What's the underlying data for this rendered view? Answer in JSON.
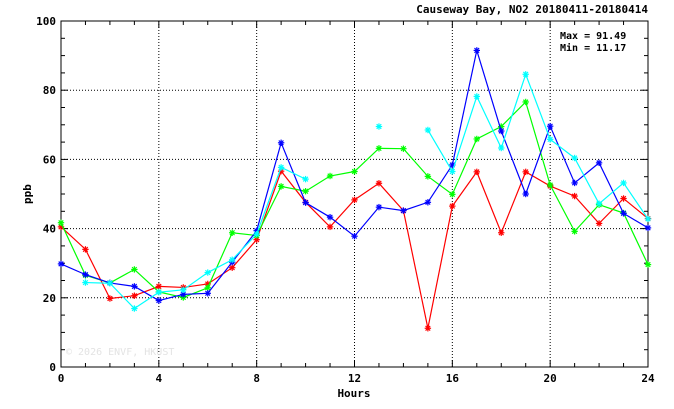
{
  "chart_data": {
    "type": "line",
    "title": "Causeway Bay, NO2 20180411-20180414",
    "xlabel": "Hours",
    "ylabel": "ppb",
    "xlim": [
      0,
      24
    ],
    "ylim": [
      0,
      100
    ],
    "x_ticks": [
      0,
      4,
      8,
      12,
      16,
      20,
      24
    ],
    "y_ticks": [
      0,
      20,
      40,
      60,
      80,
      100
    ],
    "grid": true,
    "stats": {
      "max_label": "Max = 91.49",
      "min_label": "Min = 11.17"
    },
    "watermark": "© 2026  ENVF, HKUST",
    "x": [
      0,
      1,
      2,
      3,
      4,
      5,
      6,
      7,
      8,
      9,
      10,
      11,
      12,
      13,
      14,
      15,
      16,
      17,
      18,
      19,
      20,
      21,
      22,
      23,
      24
    ],
    "series": [
      {
        "color": "#ff0000",
        "values": [
          40.5,
          34,
          19.8,
          20.6,
          23.3,
          23,
          24,
          28.7,
          36.8,
          56.6,
          47.6,
          40.5,
          48.3,
          53.1,
          45.2,
          11.2,
          46.5,
          56.4,
          38.8,
          56.4,
          52.3,
          49.4,
          41.5,
          48.7,
          42.9
        ]
      },
      {
        "color": "#00ff00",
        "values": [
          41.7,
          26.5,
          24.3,
          28.2,
          21.7,
          20.1,
          22.9,
          38.8,
          38,
          52.2,
          50.8,
          55.2,
          56.5,
          63.2,
          63.1,
          55.1,
          49.9,
          65.9,
          69.5,
          76.6,
          52.6,
          39.2,
          46.9,
          44.5,
          29.6
        ]
      },
      {
        "color": "#0000ff",
        "values": [
          29.8,
          26.7,
          24.3,
          23.3,
          19.2,
          21,
          21.3,
          30.3,
          39.4,
          64.8,
          47.5,
          43.3,
          37.8,
          46.2,
          45.2,
          47.6,
          58.4,
          91.5,
          68.2,
          50,
          69.6,
          53.2,
          59,
          44.4,
          40.2
        ]
      },
      {
        "color": "#00ffff",
        "values": [
          null,
          24.4,
          24.2,
          16.9,
          21.6,
          22.3,
          27.3,
          31,
          38.4,
          57.7,
          54.3,
          null,
          null,
          69.5,
          null,
          68.5,
          56.5,
          78.2,
          63.3,
          84.6,
          65.8,
          60.4,
          47.2,
          53.2,
          42.8
        ]
      }
    ]
  }
}
